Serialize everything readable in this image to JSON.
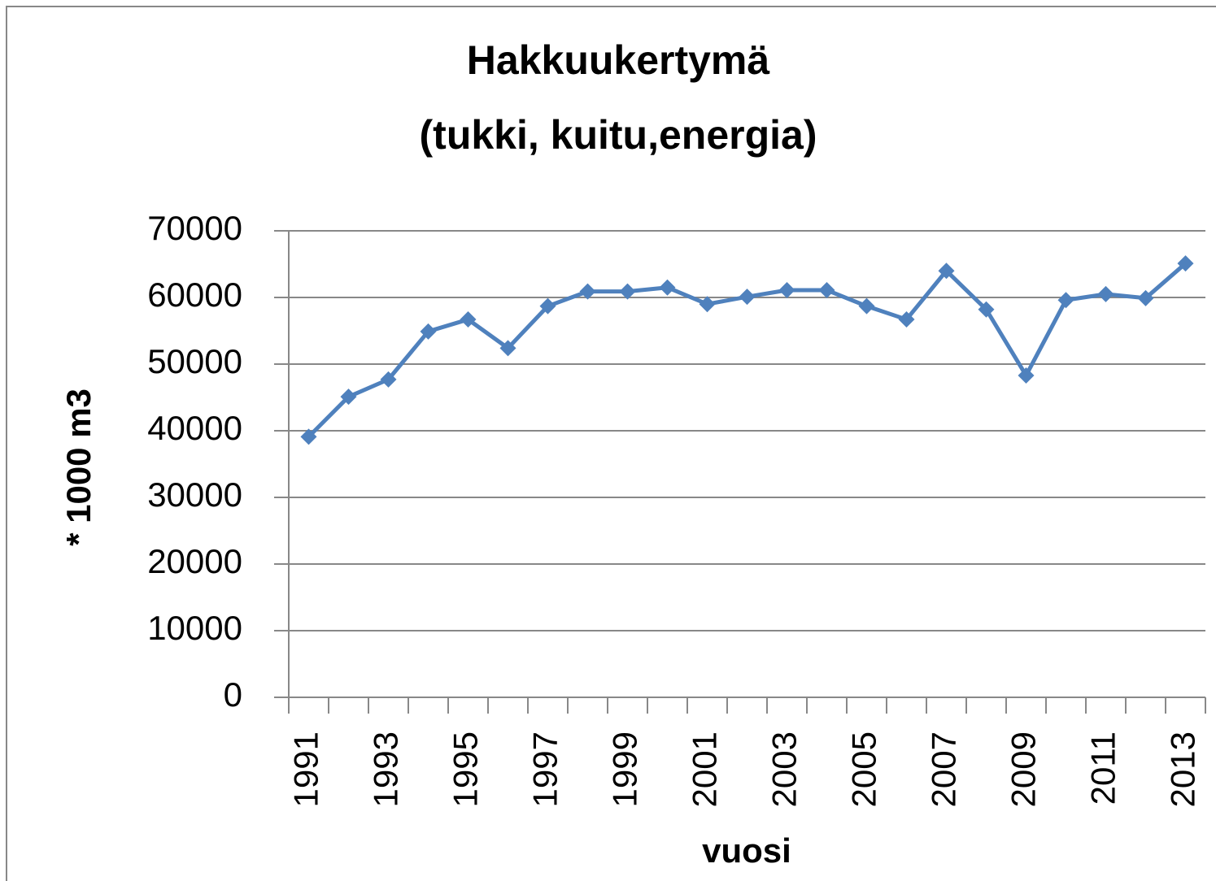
{
  "chart_data": {
    "type": "line",
    "title": [
      "Hakkuukertymä",
      "(tukki, kuitu,energia)"
    ],
    "y_axis_label": "* 1000 m3",
    "x_axis_label": "vuosi",
    "categories": [
      "1991",
      null,
      "1993",
      null,
      "1995",
      null,
      "1997",
      null,
      "1999",
      null,
      "2001",
      null,
      "2003",
      null,
      "2005",
      null,
      "2007",
      null,
      "2009",
      null,
      "2011",
      null,
      "2013"
    ],
    "series": [
      {
        "name": null,
        "color": "#4f81bd",
        "values": [
          39100,
          45100,
          47700,
          54900,
          56700,
          52400,
          58700,
          60900,
          60900,
          61500,
          59000,
          60100,
          61100,
          61100,
          58700,
          56700,
          64000,
          58200,
          48300,
          59600,
          60500,
          59900,
          65100
        ]
      }
    ],
    "ylim": [
      0,
      70000
    ],
    "yticks": [
      0,
      10000,
      20000,
      30000,
      40000,
      50000,
      60000,
      70000
    ],
    "grid": true
  }
}
